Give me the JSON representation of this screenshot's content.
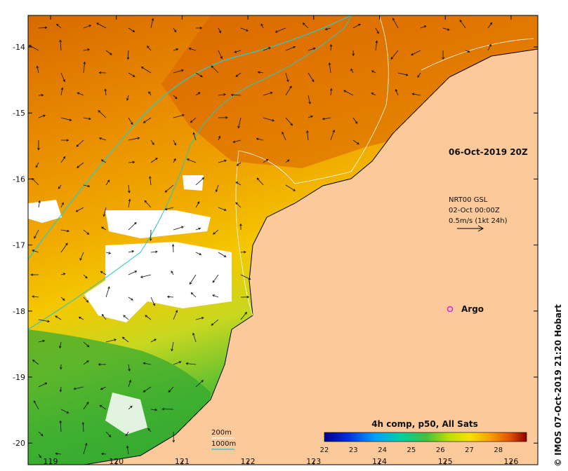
{
  "map": {
    "date_label": "06-Oct-2019 20Z",
    "current_info": [
      "NRT00 GSL",
      "02-Oct 00:00Z",
      "0.5m/s (1kt 24h)"
    ],
    "argo_label": "Argo",
    "argo_marker_color": "#e020e0",
    "depth_legend": {
      "line1": "200m",
      "line2": "1000m",
      "line2_color": "#20c8c8",
      "line1_color": "#ffffff"
    },
    "colorbar": {
      "title": "4h comp, p50, All Sats",
      "ticks": [
        "22",
        "23",
        "24",
        "25",
        "26",
        "27",
        "28"
      ]
    },
    "credit": "© IMOS 07-Oct-2019 21:20 Hobart",
    "axes": {
      "lon_ticks": [
        "119",
        "120",
        "121",
        "122",
        "123",
        "124",
        "125",
        "126"
      ],
      "lat_ticks": [
        "-14",
        "-15",
        "-16",
        "-17",
        "-18",
        "-19",
        "-20"
      ]
    },
    "colors": {
      "land": "#fbc99a",
      "warm": "#e07000",
      "mid": "#f0a000",
      "cool": "#40b020",
      "cloud": "#ffffff"
    }
  }
}
